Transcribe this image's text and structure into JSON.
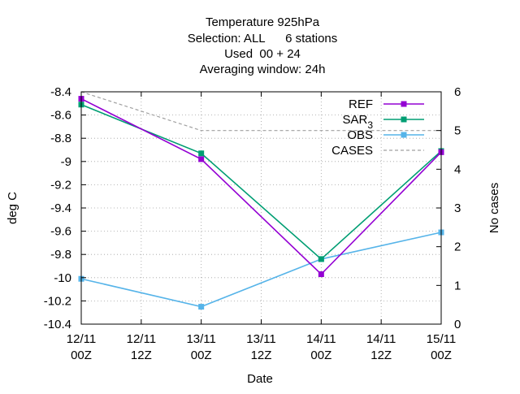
{
  "chart_data": {
    "type": "line",
    "title_lines": [
      "Temperature 925hPa",
      "Selection: ALL      6 stations",
      "Used  00 + 24",
      "Averaging window: 24h"
    ],
    "xlabel": "Date",
    "ylabel": "deg C",
    "y2label": "No cases",
    "x": [
      "12/11 00Z",
      "12/11 12Z",
      "13/11 00Z",
      "13/11 12Z",
      "14/11 00Z",
      "14/11 12Z",
      "15/11 00Z"
    ],
    "x_ticks": [
      {
        "line1": "12/11",
        "line2": "00Z"
      },
      {
        "line1": "12/11",
        "line2": "12Z"
      },
      {
        "line1": "13/11",
        "line2": "00Z"
      },
      {
        "line1": "13/11",
        "line2": "12Z"
      },
      {
        "line1": "14/11",
        "line2": "00Z"
      },
      {
        "line1": "14/11",
        "line2": "12Z"
      },
      {
        "line1": "15/11",
        "line2": "00Z"
      }
    ],
    "ylim": [
      -10.4,
      -8.4
    ],
    "y_ticks": [
      "-8.4",
      "-8.6",
      "-8.8",
      "-9",
      "-9.2",
      "-9.4",
      "-9.6",
      "-9.8",
      "-10",
      "-10.2",
      "-10.4"
    ],
    "y2lim": [
      0,
      6
    ],
    "y2_ticks": [
      "0",
      "1",
      "2",
      "3",
      "4",
      "5",
      "6"
    ],
    "grid": true,
    "legend_position": "top-right",
    "series": [
      {
        "name": "REF",
        "axis": "y",
        "color": "#9400d3",
        "marker": "square",
        "dash": false,
        "x": [
          "12/11 00Z",
          "13/11 00Z",
          "14/11 00Z",
          "15/11 00Z"
        ],
        "values": [
          -8.46,
          -8.98,
          -9.97,
          -8.92
        ]
      },
      {
        "name": "SAR",
        "name_sub": "3",
        "axis": "y",
        "color": "#009e73",
        "marker": "square",
        "dash": false,
        "x": [
          "12/11 00Z",
          "13/11 00Z",
          "14/11 00Z",
          "15/11 00Z"
        ],
        "values": [
          -8.51,
          -8.93,
          -9.84,
          -8.91
        ]
      },
      {
        "name": "OBS",
        "axis": "y",
        "color": "#56b4e9",
        "marker": "square",
        "dash": false,
        "x": [
          "12/11 00Z",
          "13/11 00Z",
          "14/11 00Z",
          "15/11 00Z"
        ],
        "values": [
          -10.01,
          -10.25,
          -9.84,
          -9.61
        ]
      },
      {
        "name": "CASES",
        "axis": "y2",
        "color": "#a0a0a0",
        "marker": "none",
        "dash": true,
        "x": [
          "12/11 00Z",
          "13/11 00Z",
          "14/11 00Z",
          "15/11 00Z"
        ],
        "values": [
          6,
          5,
          5,
          5
        ]
      }
    ]
  }
}
